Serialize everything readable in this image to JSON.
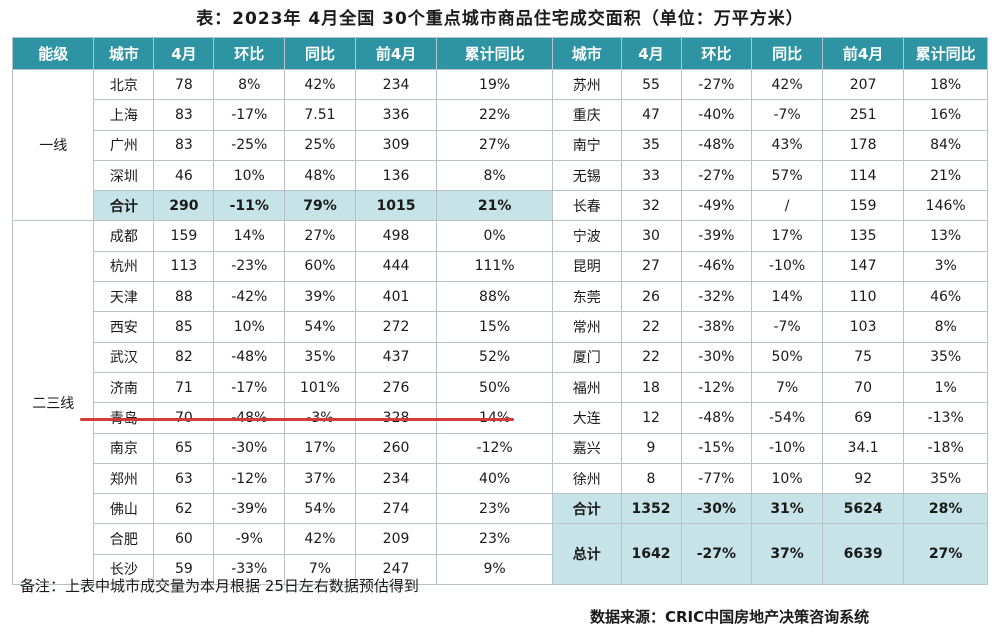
{
  "title": "表：2023年 4月全国 30个重点城市商品住宅成交面积（单位：万平方米）",
  "header": {
    "left": [
      "能级",
      "城市",
      "4月",
      "环比",
      "同比",
      "前4月",
      "累计同比"
    ],
    "right": [
      "城市",
      "4月",
      "环比",
      "同比",
      "前4月",
      "累计同比"
    ]
  },
  "tiers": {
    "first": "一线",
    "second_third": "二三线"
  },
  "left_rows": [
    {
      "city": "北京",
      "apr": "78",
      "mom": "8%",
      "yoy": "42%",
      "ytd": "234",
      "cum": "19%"
    },
    {
      "city": "上海",
      "apr": "83",
      "mom": "-17%",
      "yoy": "7.51",
      "ytd": "336",
      "cum": "22%"
    },
    {
      "city": "广州",
      "apr": "83",
      "mom": "-25%",
      "yoy": "25%",
      "ytd": "309",
      "cum": "27%"
    },
    {
      "city": "深圳",
      "apr": "46",
      "mom": "10%",
      "yoy": "48%",
      "ytd": "136",
      "cum": "8%"
    },
    {
      "city": "合计",
      "apr": "290",
      "mom": "-11%",
      "yoy": "79%",
      "ytd": "1015",
      "cum": "21%"
    },
    {
      "city": "成都",
      "apr": "159",
      "mom": "14%",
      "yoy": "27%",
      "ytd": "498",
      "cum": "0%"
    },
    {
      "city": "杭州",
      "apr": "113",
      "mom": "-23%",
      "yoy": "60%",
      "ytd": "444",
      "cum": "111%"
    },
    {
      "city": "天津",
      "apr": "88",
      "mom": "-42%",
      "yoy": "39%",
      "ytd": "401",
      "cum": "88%"
    },
    {
      "city": "西安",
      "apr": "85",
      "mom": "10%",
      "yoy": "54%",
      "ytd": "272",
      "cum": "15%"
    },
    {
      "city": "武汉",
      "apr": "82",
      "mom": "-48%",
      "yoy": "35%",
      "ytd": "437",
      "cum": "52%"
    },
    {
      "city": "济南",
      "apr": "71",
      "mom": "-17%",
      "yoy": "101%",
      "ytd": "276",
      "cum": "50%"
    },
    {
      "city": "青岛",
      "apr": "70",
      "mom": "-48%",
      "yoy": "-3%",
      "ytd": "328",
      "cum": "14%"
    },
    {
      "city": "南京",
      "apr": "65",
      "mom": "-30%",
      "yoy": "17%",
      "ytd": "260",
      "cum": "-12%"
    },
    {
      "city": "郑州",
      "apr": "63",
      "mom": "-12%",
      "yoy": "37%",
      "ytd": "234",
      "cum": "40%"
    },
    {
      "city": "佛山",
      "apr": "62",
      "mom": "-39%",
      "yoy": "54%",
      "ytd": "274",
      "cum": "23%"
    },
    {
      "city": "合肥",
      "apr": "60",
      "mom": "-9%",
      "yoy": "42%",
      "ytd": "209",
      "cum": "23%"
    },
    {
      "city": "长沙",
      "apr": "59",
      "mom": "-33%",
      "yoy": "7%",
      "ytd": "247",
      "cum": "9%"
    }
  ],
  "right_rows": [
    {
      "city": "苏州",
      "apr": "55",
      "mom": "-27%",
      "yoy": "42%",
      "ytd": "207",
      "cum": "18%"
    },
    {
      "city": "重庆",
      "apr": "47",
      "mom": "-40%",
      "yoy": "-7%",
      "ytd": "251",
      "cum": "16%"
    },
    {
      "city": "南宁",
      "apr": "35",
      "mom": "-48%",
      "yoy": "43%",
      "ytd": "178",
      "cum": "84%"
    },
    {
      "city": "无锡",
      "apr": "33",
      "mom": "-27%",
      "yoy": "57%",
      "ytd": "114",
      "cum": "21%"
    },
    {
      "city": "长春",
      "apr": "32",
      "mom": "-49%",
      "yoy": "/",
      "ytd": "159",
      "cum": "146%"
    },
    {
      "city": "宁波",
      "apr": "30",
      "mom": "-39%",
      "yoy": "17%",
      "ytd": "135",
      "cum": "13%"
    },
    {
      "city": "昆明",
      "apr": "27",
      "mom": "-46%",
      "yoy": "-10%",
      "ytd": "147",
      "cum": "3%"
    },
    {
      "city": "东莞",
      "apr": "26",
      "mom": "-32%",
      "yoy": "14%",
      "ytd": "110",
      "cum": "46%"
    },
    {
      "city": "常州",
      "apr": "22",
      "mom": "-38%",
      "yoy": "-7%",
      "ytd": "103",
      "cum": "8%"
    },
    {
      "city": "厦门",
      "apr": "22",
      "mom": "-30%",
      "yoy": "50%",
      "ytd": "75",
      "cum": "35%"
    },
    {
      "city": "福州",
      "apr": "18",
      "mom": "-12%",
      "yoy": "7%",
      "ytd": "70",
      "cum": "1%"
    },
    {
      "city": "大连",
      "apr": "12",
      "mom": "-48%",
      "yoy": "-54%",
      "ytd": "69",
      "cum": "-13%"
    },
    {
      "city": "嘉兴",
      "apr": "9",
      "mom": "-15%",
      "yoy": "-10%",
      "ytd": "34.1",
      "cum": "-18%"
    },
    {
      "city": "徐州",
      "apr": "8",
      "mom": "-77%",
      "yoy": "10%",
      "ytd": "92",
      "cum": "35%"
    },
    {
      "city": "合计",
      "apr": "1352",
      "mom": "-30%",
      "yoy": "31%",
      "ytd": "5624",
      "cum": "28%"
    }
  ],
  "total": {
    "label": "总计",
    "apr": "1642",
    "mom": "-27%",
    "yoy": "37%",
    "ytd": "6639",
    "cum": "27%"
  },
  "note": "备注：上表中城市成交量为本月根据 25日左右数据预估得到",
  "source": "数据来源：CRIC中国房地产决策咨询系统",
  "colors": {
    "header": "#2e94a4",
    "summary": "#c6e3e7",
    "highlight_line": "#d43a3a"
  }
}
